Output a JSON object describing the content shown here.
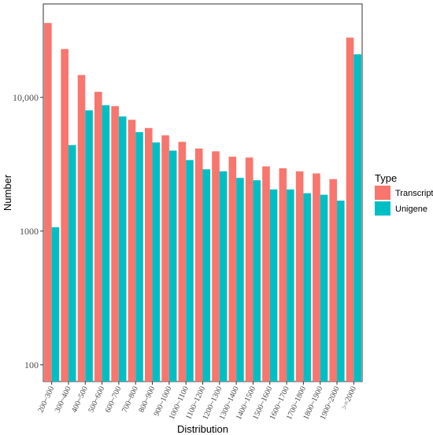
{
  "chart_data": {
    "type": "bar",
    "title": "",
    "xlabel": "Distribution",
    "ylabel": "Number",
    "yscale": "log",
    "ylim": [
      75,
      50000
    ],
    "yticks": [
      100,
      1000,
      10000
    ],
    "ytick_labels": [
      "100",
      "1000",
      "10,000"
    ],
    "grid": false,
    "legend": {
      "title": "Type",
      "position": "right"
    },
    "categories": [
      "200~300",
      "300~400",
      "400~500",
      "500~600",
      "600~700",
      "700~800",
      "800~900",
      "900~1000",
      "1000~1100",
      "1100~1200",
      "1200~1300",
      "1300~1400",
      "1400~1500",
      "1500~1600",
      "1600~1700",
      "1700~1800",
      "1800~1900",
      "1900~2000",
      ">=2000"
    ],
    "series": [
      {
        "name": "Transcript",
        "color": "#F8766D",
        "values": [
          36000,
          23000,
          14700,
          11000,
          8600,
          6800,
          5900,
          5200,
          4650,
          4150,
          3950,
          3600,
          3550,
          3050,
          2950,
          2800,
          2700,
          2450,
          28000
        ]
      },
      {
        "name": "Unigene",
        "color": "#00BFC4",
        "values": [
          1070,
          4400,
          8000,
          8750,
          7200,
          5500,
          4600,
          4000,
          3400,
          2900,
          2800,
          2500,
          2400,
          2050,
          2050,
          1920,
          1870,
          1690,
          21000
        ]
      }
    ]
  }
}
